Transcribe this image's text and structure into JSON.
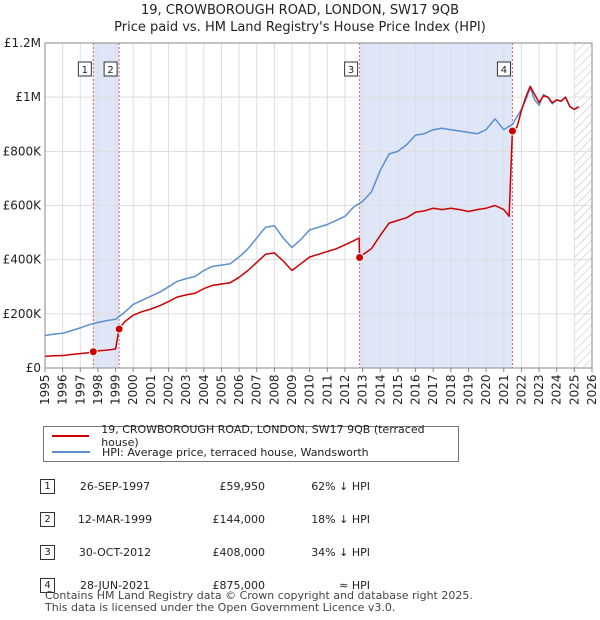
{
  "header": {
    "title_line1": "19, CROWBOROUGH ROAD, LONDON, SW17 9QB",
    "title_line2": "Price paid vs. HM Land Registry's House Price Index (HPI)"
  },
  "legend": {
    "property_label": "19, CROWBOROUGH ROAD, LONDON, SW17 9QB (terraced house)",
    "hpi_label": "HPI: Average price, terraced house, Wandsworth"
  },
  "transactions": [
    {
      "num": "1",
      "date": "26-SEP-1997",
      "price": "£59,950",
      "hpi": "62% ↓ HPI"
    },
    {
      "num": "2",
      "date": "12-MAR-1999",
      "price": "£144,000",
      "hpi": "18% ↓ HPI"
    },
    {
      "num": "3",
      "date": "30-OCT-2012",
      "price": "£408,000",
      "hpi": "34% ↓ HPI"
    },
    {
      "num": "4",
      "date": "28-JUN-2021",
      "price": "£875,000",
      "hpi": "≈ HPI"
    }
  ],
  "footer": {
    "line1": "Contains HM Land Registry data © Crown copyright and database right 2025.",
    "line2": "This data is licensed under the Open Government Licence v3.0."
  },
  "colors": {
    "property": "#cc0000",
    "hpi": "#5a8fd0",
    "shade": "#dfe6f7",
    "grid": "#dddddd"
  },
  "chart_data": {
    "type": "line",
    "title": "19, CROWBOROUGH ROAD, LONDON, SW17 9QB — Price paid vs. HM Land Registry's House Price Index (HPI)",
    "xlim": [
      1995,
      2026
    ],
    "ylim": [
      0,
      1200000
    ],
    "x_ticks": [
      1995,
      1996,
      1997,
      1998,
      1999,
      2000,
      2001,
      2002,
      2003,
      2004,
      2005,
      2006,
      2007,
      2008,
      2009,
      2010,
      2011,
      2012,
      2013,
      2014,
      2015,
      2016,
      2017,
      2018,
      2019,
      2020,
      2021,
      2022,
      2023,
      2024,
      2025,
      2026
    ],
    "y_ticks": [
      {
        "value": 0,
        "label": "£0"
      },
      {
        "value": 200000,
        "label": "£200K"
      },
      {
        "value": 400000,
        "label": "£400K"
      },
      {
        "value": 600000,
        "label": "£600K"
      },
      {
        "value": 800000,
        "label": "£800K"
      },
      {
        "value": 1000000,
        "label": "£1M"
      },
      {
        "value": 1200000,
        "label": "£1.2M"
      }
    ],
    "grid": true,
    "shaded_spans": [
      [
        1997.74,
        1999.2
      ],
      [
        2012.83,
        2021.49
      ]
    ],
    "hatch_from": 2025.0,
    "sales": [
      {
        "label": "1",
        "x": 1997.74,
        "y": 59950
      },
      {
        "label": "2",
        "x": 1999.2,
        "y": 144000
      },
      {
        "label": "3",
        "x": 2012.83,
        "y": 408000
      },
      {
        "label": "4",
        "x": 2021.49,
        "y": 875000
      }
    ],
    "series": [
      {
        "name": "HPI: Average price, terraced house, Wandsworth",
        "color": "#5a8fd0",
        "x": [
          1995,
          1995.5,
          1996,
          1996.5,
          1997,
          1997.5,
          1998,
          1998.5,
          1999,
          1999.5,
          2000,
          2000.5,
          2001,
          2001.5,
          2002,
          2002.5,
          2003,
          2003.5,
          2004,
          2004.5,
          2005,
          2005.5,
          2006,
          2006.5,
          2007,
          2007.5,
          2008,
          2008.5,
          2009,
          2009.5,
          2010,
          2010.5,
          2011,
          2011.5,
          2012,
          2012.5,
          2013,
          2013.5,
          2014,
          2014.5,
          2015,
          2015.5,
          2016,
          2016.5,
          2017,
          2017.5,
          2018,
          2018.5,
          2019,
          2019.5,
          2020,
          2020.5,
          2021,
          2021.5,
          2022,
          2022.25,
          2022.5,
          2022.75,
          2023,
          2023.25,
          2023.5,
          2023.75,
          2024,
          2024.25,
          2024.5,
          2024.75,
          2025,
          2025.25
        ],
        "y": [
          120000,
          125000,
          128000,
          138000,
          148000,
          160000,
          168000,
          175000,
          180000,
          205000,
          235000,
          250000,
          265000,
          280000,
          300000,
          320000,
          330000,
          338000,
          360000,
          375000,
          380000,
          385000,
          410000,
          440000,
          480000,
          520000,
          525000,
          480000,
          445000,
          475000,
          510000,
          520000,
          530000,
          545000,
          560000,
          595000,
          615000,
          650000,
          730000,
          790000,
          800000,
          825000,
          860000,
          865000,
          880000,
          885000,
          880000,
          875000,
          870000,
          865000,
          880000,
          920000,
          880000,
          900000,
          955000,
          990000,
          1035000,
          990000,
          970000,
          1010000,
          1000000,
          975000,
          990000,
          985000,
          1000000,
          965000,
          955000,
          965000
        ]
      },
      {
        "name": "19, CROWBOROUGH ROAD, LONDON, SW17 9QB (terraced house)",
        "color": "#cc0000",
        "x": [
          1995,
          1995.5,
          1996,
          1996.5,
          1997,
          1997.5,
          1997.74,
          1998,
          1998.5,
          1999,
          1999.2,
          1999.5,
          2000,
          2000.5,
          2001,
          2001.5,
          2002,
          2002.5,
          2003,
          2003.5,
          2004,
          2004.5,
          2005,
          2005.5,
          2006,
          2006.5,
          2007,
          2007.5,
          2008,
          2008.5,
          2009,
          2009.5,
          2010,
          2010.5,
          2011,
          2011.5,
          2012,
          2012.5,
          2012.8,
          2012.83,
          2013,
          2013.5,
          2014,
          2014.5,
          2015,
          2015.5,
          2016,
          2016.5,
          2017,
          2017.5,
          2018,
          2018.5,
          2019,
          2019.5,
          2020,
          2020.5,
          2021,
          2021.3,
          2021.49,
          2021.75,
          2022,
          2022.25,
          2022.5,
          2022.75,
          2023,
          2023.25,
          2023.5,
          2023.75,
          2024,
          2024.25,
          2024.5,
          2024.75,
          2025,
          2025.25
        ],
        "y": [
          43000,
          45000,
          46000,
          50000,
          53000,
          57000,
          59950,
          63000,
          66000,
          70000,
          144000,
          170000,
          195000,
          208000,
          218000,
          230000,
          245000,
          262000,
          270000,
          276000,
          293000,
          305000,
          310000,
          315000,
          335000,
          360000,
          390000,
          420000,
          425000,
          395000,
          360000,
          385000,
          410000,
          420000,
          430000,
          440000,
          455000,
          470000,
          480000,
          408000,
          418000,
          440000,
          490000,
          535000,
          545000,
          555000,
          575000,
          580000,
          590000,
          585000,
          590000,
          585000,
          578000,
          585000,
          590000,
          600000,
          585000,
          560000,
          875000,
          890000,
          950000,
          1000000,
          1040000,
          1010000,
          980000,
          1005000,
          1000000,
          980000,
          990000,
          985000,
          1000000,
          965000,
          955000,
          965000
        ]
      }
    ]
  }
}
